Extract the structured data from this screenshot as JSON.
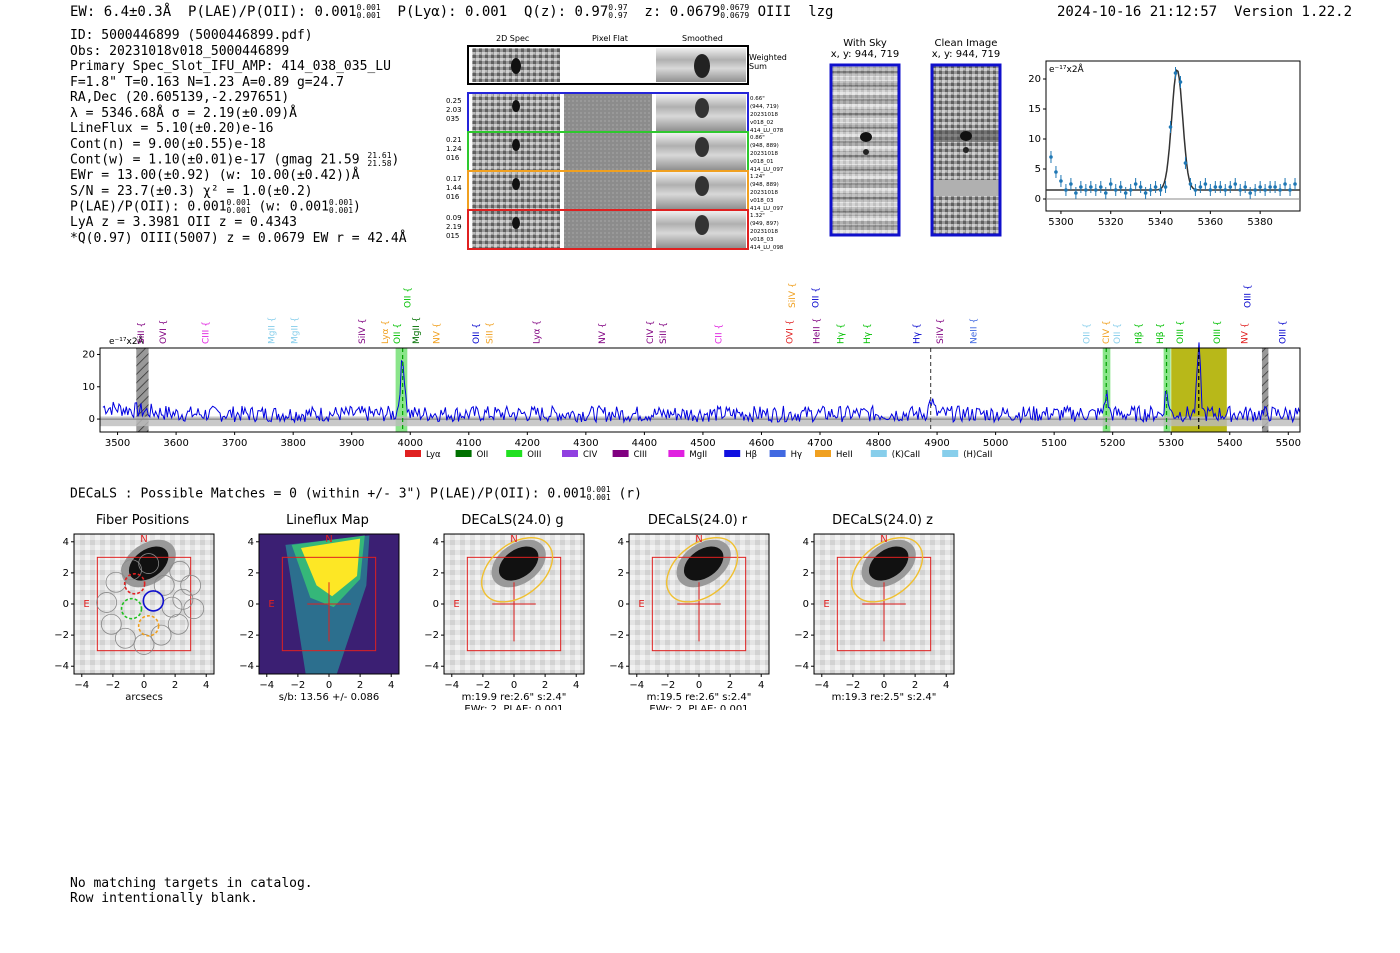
{
  "header": {
    "ew": "EW: 6.4±0.3Å",
    "plae": "P(LAE)/P(OII): 0.001",
    "plae_hi": "0.001",
    "plae_lo": "0.001",
    "plya": "P(Lyα): 0.001",
    "qz": "Q(z): 0.97",
    "qz_hi": "0.97",
    "qz_lo": "0.97",
    "z": "z: 0.0679",
    "z_hi": "0.0679",
    "z_lo": "0.0679",
    "z_line": "OIII",
    "flags": "lzg",
    "timestamp": "2024-10-16 21:12:57",
    "version": "Version 1.22.2"
  },
  "info": {
    "id": "ID: 5000446899 (5000446899.pdf)",
    "obs": "Obs: 20231018v018_5000446899",
    "primary": "Primary Spec_Slot_IFU_AMP: 414_038_035_LU",
    "fwhm": "F=1.8\"  T=0.163  N=1.23  A=0.89  g=24.7",
    "radec": "RA,Dec (20.605139,-2.297651)",
    "lambda": "λ = 5346.68Å  σ = 2.19(±0.09)Å",
    "lineflux": "LineFlux = 5.10(±0.20)e-16",
    "contn": "Cont(n) = 9.00(±0.55)e-18",
    "contw": "Cont(w) = 1.10(±0.01)e-17 (gmag 21.59",
    "contw_hi": "21.61",
    "contw_lo": "21.58",
    "ewr": "EWr = 13.00(±0.92) (w: 10.00(±0.42))Å",
    "sn": "S/N = 23.7(±0.3)  χ² = 1.0(±0.2)",
    "plae2": "P(LAE)/P(OII): 0.001",
    "plae2_hi": "0.001",
    "plae2_lo": "0.001",
    "plae2_w": "(w: 0.001",
    "plae2_w_hi": "0.001",
    "plae2_w_lo": "0.001",
    "lya": "LyA z = 3.3981  OII z = 0.4343",
    "qline": "*Q(0.97) OIII(5007) z = 0.0679  EW r = 42.4Å"
  },
  "cutouts": {
    "col_2d": "2D Spec",
    "col_flat": "Pixel Flat",
    "col_smooth": "Smoothed",
    "weighted": "Weighted Sum",
    "rows": [
      {
        "left": [
          "0.25",
          "2.03",
          "035"
        ],
        "right": [
          "0.66\"",
          "(944, 719)",
          "20231018",
          "v018_02",
          "414_LU_078"
        ],
        "color": "#2424d8"
      },
      {
        "left": [
          "0.21",
          "1.24",
          "016"
        ],
        "right": [
          "0.86\"",
          "(948, 889)",
          "20231018",
          "v018_01",
          "414_LU_097"
        ],
        "color": "#2ec82e"
      },
      {
        "left": [
          "0.17",
          "1.44",
          "016"
        ],
        "right": [
          "1.24\"",
          "(948, 889)",
          "20231018",
          "v018_03",
          "414_LU_097"
        ],
        "color": "#f0a020"
      },
      {
        "left": [
          "0.09",
          "2.19",
          "015"
        ],
        "right": [
          "1.32\"",
          "(949, 897)",
          "20231018",
          "v018_03",
          "414_LU_098"
        ],
        "color": "#e02020"
      }
    ]
  },
  "sky": {
    "with_sky_title": "With Sky",
    "with_sky_coords": "x, y: 944, 719",
    "clean_title": "Clean Image",
    "clean_coords": "x, y: 944, 719"
  },
  "zoom_chart": {
    "type": "scatter",
    "unit_label": "e⁻¹⁷x2Å",
    "x": [
      5296,
      5298,
      5300,
      5302,
      5304,
      5306,
      5308,
      5310,
      5312,
      5314,
      5316,
      5318,
      5320,
      5322,
      5324,
      5326,
      5328,
      5330,
      5332,
      5334,
      5336,
      5338,
      5340,
      5342,
      5344,
      5346,
      5348,
      5350,
      5352,
      5354,
      5356,
      5358,
      5360,
      5362,
      5364,
      5366,
      5368,
      5370,
      5372,
      5374,
      5376,
      5378,
      5380,
      5382,
      5384,
      5386,
      5388,
      5390,
      5392,
      5394
    ],
    "y": [
      7,
      4.5,
      3,
      1.5,
      2.5,
      1,
      2,
      1.5,
      2,
      1.5,
      2,
      1,
      2.5,
      1.5,
      2,
      1,
      1.5,
      2.5,
      2,
      1,
      1.5,
      2,
      1.5,
      2,
      12,
      21,
      19.5,
      6,
      2.5,
      1.5,
      2,
      2.5,
      1.5,
      2,
      2,
      1.5,
      2,
      2.5,
      1.5,
      2,
      1,
      1.5,
      2,
      1.5,
      2,
      2,
      1.5,
      2.5,
      1.5,
      2.5
    ],
    "fit_center": 5346.68,
    "fit_sigma": 2.19,
    "fit_amp": 20,
    "fit_cont": 1.5,
    "xlim": [
      5294,
      5396
    ],
    "ylim": [
      -2,
      23
    ],
    "xticks": [
      5300,
      5320,
      5340,
      5360,
      5380
    ],
    "yticks": [
      0,
      5,
      10,
      15,
      20
    ]
  },
  "spectrum_chart": {
    "type": "line",
    "unit_label": "e⁻¹⁷x2Å",
    "xlim": [
      3470,
      5520
    ],
    "ylim": [
      -4,
      22
    ],
    "xticks": [
      3500,
      3600,
      3700,
      3800,
      3900,
      4000,
      4100,
      4200,
      4300,
      4400,
      4500,
      4600,
      4700,
      4800,
      4900,
      5000,
      5100,
      5200,
      5300,
      5400,
      5500
    ],
    "yticks": [
      0,
      10,
      20
    ],
    "peaks": [
      {
        "x": 3987,
        "h": 16,
        "w": 4
      },
      {
        "x": 5189,
        "h": 6,
        "w": 3
      },
      {
        "x": 5292,
        "h": 7,
        "w": 3
      },
      {
        "x": 5347,
        "h": 20,
        "w": 3
      },
      {
        "x": 4890,
        "h": 4,
        "w": 4
      }
    ],
    "bands": [
      {
        "x0": 3975,
        "x1": 3995,
        "color": "#7de27d"
      },
      {
        "x0": 5183,
        "x1": 5196,
        "color": "#7de27d"
      },
      {
        "x0": 5287,
        "x1": 5299,
        "color": "#7de27d"
      },
      {
        "x0": 5300,
        "x1": 5395,
        "color": "#b0b000"
      }
    ],
    "hatch": [
      {
        "x0": 3532,
        "x1": 3553
      },
      {
        "x0": 5455,
        "x1": 5466
      }
    ],
    "vlines": [
      {
        "x": 3987,
        "color": "#00a000",
        "dash": true
      },
      {
        "x": 4889,
        "color": "#555",
        "dash": true
      },
      {
        "x": 5189,
        "color": "#00a000",
        "dash": true
      },
      {
        "x": 5292,
        "color": "#00a000",
        "dash": true
      },
      {
        "x": 5347,
        "color": "#000",
        "dash": true
      }
    ],
    "line_labels": [
      {
        "x": 3540,
        "text": "SiII",
        "color": "#800080",
        "row": 0
      },
      {
        "x": 3578,
        "text": "OVI",
        "color": "#800080",
        "row": 0
      },
      {
        "x": 3650,
        "text": "CIII",
        "color": "#e020e0",
        "row": 0
      },
      {
        "x": 3763,
        "text": "MgII",
        "color": "#87ceeb",
        "row": 0
      },
      {
        "x": 3802,
        "text": "MgII",
        "color": "#87ceeb",
        "row": 0
      },
      {
        "x": 3918,
        "text": "SiIV",
        "color": "#800080",
        "row": 0
      },
      {
        "x": 3957,
        "text": "Lyα",
        "color": "#f0a020",
        "row": 0
      },
      {
        "x": 3977,
        "text": "OII",
        "color": "#00c000",
        "row": 0
      },
      {
        "x": 3995,
        "text": "OII",
        "color": "#00c000",
        "row": 1
      },
      {
        "x": 4010,
        "text": "MgII",
        "color": "#007000",
        "row": 0
      },
      {
        "x": 4045,
        "text": "NV",
        "color": "#f0a020",
        "row": 0
      },
      {
        "x": 4112,
        "text": "OII",
        "color": "#0000cc",
        "row": 0
      },
      {
        "x": 4135,
        "text": "SiII",
        "color": "#f0a020",
        "row": 0
      },
      {
        "x": 4216,
        "text": "Lyα",
        "color": "#800080",
        "row": 0
      },
      {
        "x": 4328,
        "text": "NV",
        "color": "#800080",
        "row": 0
      },
      {
        "x": 4410,
        "text": "CIV",
        "color": "#800080",
        "row": 0
      },
      {
        "x": 4432,
        "text": "SiII",
        "color": "#800080",
        "row": 0
      },
      {
        "x": 4527,
        "text": "CII",
        "color": "#e020e0",
        "row": 0
      },
      {
        "x": 4648,
        "text": "OVI",
        "color": "#e02020",
        "row": 0
      },
      {
        "x": 4652,
        "text": "SiIV",
        "color": "#f0a020",
        "row": 1
      },
      {
        "x": 4692,
        "text": "OII",
        "color": "#0000cc",
        "row": 1
      },
      {
        "x": 4694,
        "text": "HeII",
        "color": "#800080",
        "row": 0
      },
      {
        "x": 4735,
        "text": "Hγ",
        "color": "#00c000",
        "row": 0
      },
      {
        "x": 4780,
        "text": "Hγ",
        "color": "#00c000",
        "row": 0
      },
      {
        "x": 4865,
        "text": "Hγ",
        "color": "#0000cc",
        "row": 0
      },
      {
        "x": 4905,
        "text": "SiIV",
        "color": "#800080",
        "row": 0
      },
      {
        "x": 4962,
        "text": "NeII",
        "color": "#4169e1",
        "row": 0
      },
      {
        "x": 5155,
        "text": "OII",
        "color": "#87ceeb",
        "row": 0
      },
      {
        "x": 5189,
        "text": "CIV",
        "color": "#f0a020",
        "row": 0
      },
      {
        "x": 5207,
        "text": "OII",
        "color": "#87ceeb",
        "row": 0
      },
      {
        "x": 5244,
        "text": "Hβ",
        "color": "#00c000",
        "row": 0
      },
      {
        "x": 5281,
        "text": "Hβ",
        "color": "#00c000",
        "row": 0
      },
      {
        "x": 5315,
        "text": "OIII",
        "color": "#00c000",
        "row": 0
      },
      {
        "x": 5378,
        "text": "OIII",
        "color": "#00c000",
        "row": 0
      },
      {
        "x": 5425,
        "text": "NV",
        "color": "#e02020",
        "row": 0
      },
      {
        "x": 5430,
        "text": "OIII",
        "color": "#0000cc",
        "row": 1
      },
      {
        "x": 5490,
        "text": "OIII",
        "color": "#0000cc",
        "row": 0
      }
    ],
    "legend": [
      {
        "label": "Lyα",
        "color": "#e02020"
      },
      {
        "label": "OII",
        "color": "#007000"
      },
      {
        "label": "OIII",
        "color": "#20e020"
      },
      {
        "label": "CIV",
        "color": "#9040e0"
      },
      {
        "label": "CIII",
        "color": "#800080"
      },
      {
        "label": "MgII",
        "color": "#e020e0"
      },
      {
        "label": "Hβ",
        "color": "#1010e0"
      },
      {
        "label": "Hγ",
        "color": "#4169e1"
      },
      {
        "label": "HeII",
        "color": "#f0a020"
      },
      {
        "label": "(K)CaII",
        "color": "#87ceeb"
      },
      {
        "label": "(H)CaII",
        "color": "#87ceeb"
      }
    ]
  },
  "decals_header": {
    "text": "DECaLS : Possible Matches = 0 (within +/- 3\")  P(LAE)/P(OII): 0.001",
    "hi": "0.001",
    "lo": "0.001",
    "band": "(r)"
  },
  "panels": [
    {
      "title": "Fiber Positions",
      "cap1": "arcsecs",
      "cap2": ""
    },
    {
      "title": "Lineflux Map",
      "cap1": "s/b: 13.56 +/- 0.086",
      "cap2": ""
    },
    {
      "title": "DECaLS(24.0) g",
      "cap1": "m:19.9  re:2.6\"  s:2.4\"",
      "cap2": "EWr: 2, PLAE: 0.001"
    },
    {
      "title": "DECaLS(24.0) r",
      "cap1": "m:19.5  re:2.6\"  s:2.4\"",
      "cap2": "EWr: 2, PLAE: 0.001"
    },
    {
      "title": "DECaLS(24.0) z",
      "cap1": "m:19.3  re:2.5\"  s:2.4\"",
      "cap2": ""
    }
  ],
  "panel_axes": {
    "ticks": [
      "−4",
      "−2",
      "0",
      "2",
      "4"
    ],
    "north": "N",
    "east": "E"
  },
  "footer": {
    "line1": "No matching targets in catalog.",
    "line2": "Row intentionally blank."
  },
  "colors": {
    "blue": "#1010cc",
    "spectrum_blue": "#0000e0",
    "fiber_red": "#e02020",
    "fiber_green": "#20c020",
    "fiber_blue": "#1010d0",
    "fiber_orange": "#f0a020",
    "ellipse": "#f0c030"
  }
}
